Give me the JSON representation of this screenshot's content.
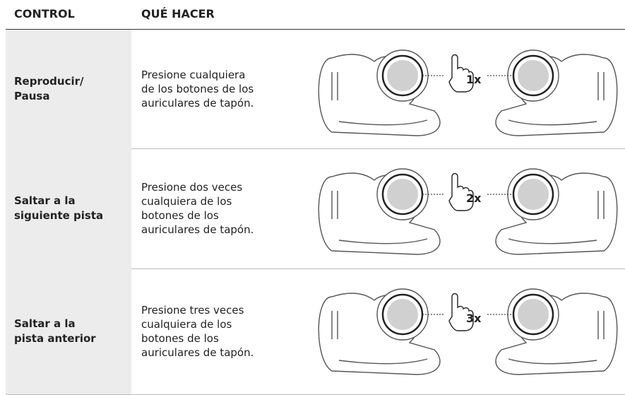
{
  "header": {
    "control": "CONTROL",
    "action": "QUÉ HACER"
  },
  "rows": [
    {
      "control": "Reproducir/\nPausa",
      "action": "Presione cualquiera\nde los botones de los\nauriculares de tapón.",
      "count": "1x"
    },
    {
      "control": "Saltar a la\nsiguiente pista",
      "action": "Presione dos veces\ncualquiera de los\nbotones de los\nauriculares de tapón.",
      "count": "2x"
    },
    {
      "control": "Saltar a la\npista anterior",
      "action": "Presione tres veces\ncualquiera de los\nbotones de los\nauriculares de tapón.",
      "count": "3x"
    }
  ]
}
